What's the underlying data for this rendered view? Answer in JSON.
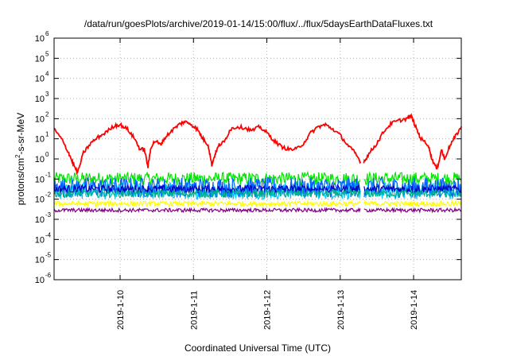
{
  "chart_data": {
    "type": "line",
    "title": "/data/run/goesPlots/archive/2019-01-14/15:00/flux/../flux/5daysEarthDataFluxes.txt",
    "xlabel": "Coordinated Universal Time (UTC)",
    "ylabel_parts": {
      "pre": "protons/cm",
      "sup": "2",
      "post": "-s-sr-MeV"
    },
    "y_scale": "log",
    "ylim_exp": [
      -6,
      6
    ],
    "y_tick_exponents": [
      -6,
      -5,
      -4,
      -3,
      -2,
      -1,
      0,
      1,
      2,
      3,
      4,
      5,
      6
    ],
    "y_tick_base": "10",
    "x_range": [
      9.1,
      14.65
    ],
    "x_ticks": [
      {
        "x": 10,
        "label": "2019-1-10"
      },
      {
        "x": 11,
        "label": "2019-1-11"
      },
      {
        "x": 12,
        "label": "2019-1-12"
      },
      {
        "x": 13,
        "label": "2019-1-13"
      },
      {
        "x": 14,
        "label": "2019-1-14"
      }
    ],
    "grid": true,
    "data_gap": [
      13.28,
      13.32
    ],
    "series": [
      {
        "color": "#ff0000",
        "x": [
          9.1,
          9.2,
          9.3,
          9.35,
          9.42,
          9.5,
          9.6,
          9.7,
          9.8,
          9.92,
          10.0,
          10.1,
          10.2,
          10.27,
          10.33,
          10.38,
          10.42,
          10.48,
          10.55,
          10.6,
          10.7,
          10.8,
          10.87,
          10.95,
          11.05,
          11.13,
          11.2,
          11.25,
          11.3,
          11.35,
          11.42,
          11.5,
          11.6,
          11.7,
          11.8,
          11.9,
          12.0,
          12.1,
          12.2,
          12.3,
          12.4,
          12.5,
          12.6,
          12.7,
          12.8,
          12.9,
          13.0,
          13.1,
          13.2,
          13.28,
          13.32,
          13.4,
          13.5,
          13.6,
          13.7,
          13.8,
          13.9,
          13.97,
          14.05,
          14.1,
          14.2,
          14.25,
          14.32,
          14.38,
          14.42,
          14.5,
          14.58,
          14.65
        ],
        "y": [
          30,
          10,
          2,
          0.7,
          0.2,
          2,
          6,
          12,
          20,
          45,
          50,
          30,
          10,
          3,
          3,
          0.4,
          4,
          8,
          5,
          10,
          25,
          50,
          70,
          60,
          30,
          10,
          5,
          0.5,
          2,
          5,
          7,
          30,
          40,
          35,
          25,
          40,
          20,
          8,
          4,
          3,
          3,
          6,
          20,
          40,
          50,
          30,
          15,
          5,
          2,
          0.7,
          0.7,
          2,
          6,
          25,
          60,
          80,
          100,
          130,
          25,
          10,
          5,
          1,
          0.3,
          3,
          1,
          5,
          15,
          40
        ]
      }
    ],
    "noise_bands": [
      {
        "color": "#00e600",
        "low": 0.05,
        "high": 0.22
      },
      {
        "color": "#00c8ff",
        "low": 0.01,
        "high": 0.07
      },
      {
        "color": "#0060ff",
        "low": 0.012,
        "high": 0.12
      },
      {
        "color": "#0000c0",
        "low": 0.02,
        "high": 0.05
      },
      {
        "color": "#00b090",
        "low": 0.012,
        "high": 0.03
      },
      {
        "color": "#ffff00",
        "low": 0.0045,
        "high": 0.008
      },
      {
        "color": "#800080",
        "low": 0.0023,
        "high": 0.0035
      }
    ]
  }
}
